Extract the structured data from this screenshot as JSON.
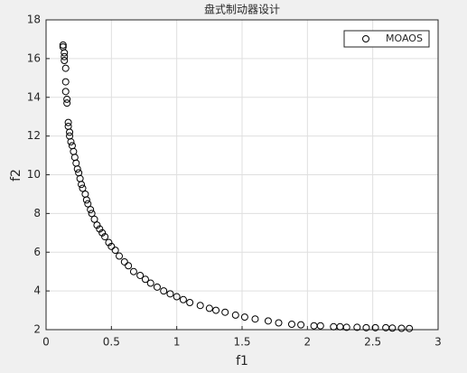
{
  "chart_data": {
    "type": "scatter",
    "title": "盘式制动器设计",
    "x_label": "f1",
    "y_label": "f2",
    "series": [
      {
        "name": "MOAOS",
        "color": "#000000",
        "x": [
          0.13,
          0.13,
          0.14,
          0.14,
          0.14,
          0.15,
          0.15,
          0.15,
          0.16,
          0.16,
          0.17,
          0.17,
          0.18,
          0.18,
          0.19,
          0.2,
          0.21,
          0.22,
          0.23,
          0.24,
          0.25,
          0.26,
          0.27,
          0.28,
          0.3,
          0.31,
          0.32,
          0.34,
          0.35,
          0.37,
          0.39,
          0.41,
          0.43,
          0.45,
          0.48,
          0.5,
          0.53,
          0.56,
          0.6,
          0.63,
          0.67,
          0.72,
          0.76,
          0.8,
          0.85,
          0.9,
          0.95,
          1.0,
          1.05,
          1.1,
          1.18,
          1.25,
          1.3,
          1.37,
          1.45,
          1.52,
          1.6,
          1.7,
          1.78,
          1.88,
          1.95,
          2.05,
          2.1,
          2.2,
          2.25,
          2.3,
          2.38,
          2.45,
          2.52,
          2.6,
          2.65,
          2.72,
          2.78
        ],
        "values": [
          16.7,
          16.6,
          16.3,
          16.1,
          15.9,
          15.5,
          14.8,
          14.3,
          13.9,
          13.7,
          12.7,
          12.5,
          12.2,
          12.0,
          11.7,
          11.5,
          11.2,
          10.9,
          10.6,
          10.3,
          10.1,
          9.8,
          9.5,
          9.3,
          9.0,
          8.7,
          8.5,
          8.2,
          8.0,
          7.7,
          7.4,
          7.2,
          7.0,
          6.8,
          6.5,
          6.3,
          6.1,
          5.8,
          5.5,
          5.3,
          5.0,
          4.8,
          4.6,
          4.4,
          4.2,
          4.0,
          3.85,
          3.7,
          3.55,
          3.4,
          3.25,
          3.1,
          3.0,
          2.9,
          2.75,
          2.65,
          2.55,
          2.45,
          2.35,
          2.28,
          2.25,
          2.2,
          2.2,
          2.15,
          2.15,
          2.12,
          2.12,
          2.1,
          2.1,
          2.1,
          2.08,
          2.07,
          2.06
        ]
      }
    ],
    "xlim": [
      0,
      3
    ],
    "xticks": [
      0,
      0.5,
      1,
      1.5,
      2,
      2.5,
      3
    ],
    "ylim": [
      2,
      18
    ],
    "yticks": [
      2,
      4,
      6,
      8,
      10,
      12,
      14,
      16,
      18
    ],
    "grid": true,
    "legend": "top-right"
  }
}
